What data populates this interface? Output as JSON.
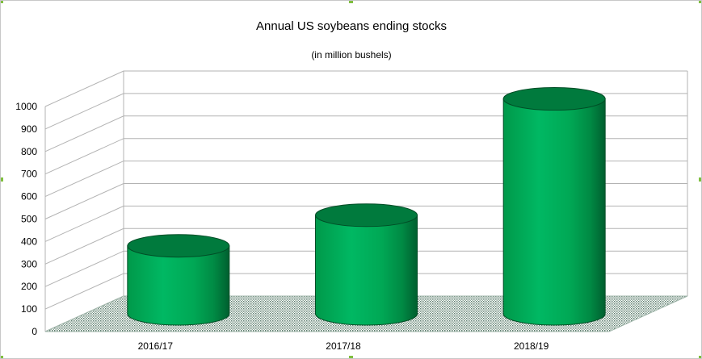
{
  "chart_data": {
    "type": "bar",
    "title": "Annual US soybeans ending stocks",
    "subtitle": "(in million bushels)",
    "categories": [
      "2016/17",
      "2017/18",
      "2018/19"
    ],
    "values": [
      302,
      438,
      955
    ],
    "ylim": [
      0,
      1000
    ],
    "yticks": [
      0,
      100,
      200,
      300,
      400,
      500,
      600,
      700,
      800,
      900,
      1000
    ],
    "xlabel": "",
    "ylabel": "",
    "grid": true,
    "style": "3d-cylinder",
    "colors": {
      "bar_dark": "#006633",
      "bar_mid": "#00a550",
      "bar_light": "#00b863",
      "top": "#007a3d",
      "floor": "#6f8f7f",
      "grid": "#b3b3b3"
    }
  }
}
